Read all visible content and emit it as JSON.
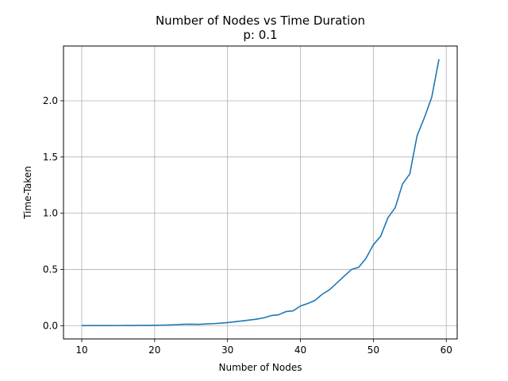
{
  "chart_data": {
    "type": "line",
    "title": "Number of Nodes vs Time Duration",
    "subtitle": "p: 0.1",
    "xlabel": "Number of Nodes",
    "ylabel": "Time-Taken",
    "xlim": [
      7.5,
      61.5
    ],
    "ylim": [
      -0.118,
      2.487
    ],
    "xticks": [
      10,
      20,
      30,
      40,
      50,
      60
    ],
    "yticks": [
      0.0,
      0.5,
      1.0,
      1.5,
      2.0
    ],
    "ytick_labels": [
      "0.0",
      "0.5",
      "1.0",
      "1.5",
      "2.0"
    ],
    "grid": true,
    "legend": "none",
    "line_color": "#1f77b4",
    "series": [
      {
        "x": [
          10,
          11,
          12,
          13,
          14,
          15,
          16,
          17,
          18,
          19,
          20,
          21,
          22,
          23,
          24,
          25,
          26,
          27,
          28,
          29,
          30,
          31,
          32,
          33,
          34,
          35,
          36,
          37,
          38,
          39,
          40,
          41,
          42,
          43,
          44,
          45,
          46,
          47,
          48,
          49,
          50,
          51,
          52,
          53,
          54,
          55,
          56,
          57,
          58,
          59
        ],
        "values": [
          0.0005,
          0.0006,
          0.0007,
          0.0008,
          0.001,
          0.0012,
          0.0015,
          0.0018,
          0.0022,
          0.0027,
          0.0033,
          0.0042,
          0.006,
          0.009,
          0.012,
          0.013,
          0.011,
          0.015,
          0.018,
          0.022,
          0.027,
          0.035,
          0.042,
          0.05,
          0.058,
          0.07,
          0.09,
          0.097,
          0.125,
          0.132,
          0.175,
          0.197,
          0.225,
          0.28,
          0.32,
          0.38,
          0.44,
          0.5,
          0.52,
          0.6,
          0.72,
          0.795,
          0.96,
          1.05,
          1.26,
          1.35,
          1.69,
          1.85,
          2.03,
          2.37
        ]
      }
    ]
  }
}
